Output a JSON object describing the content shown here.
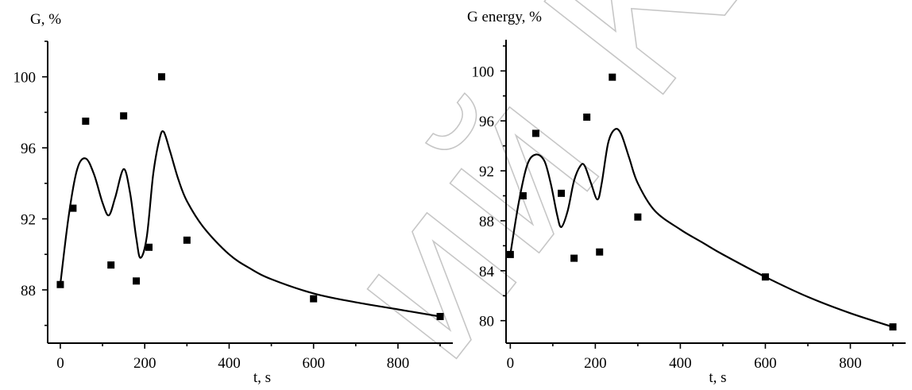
{
  "watermark": {
    "text": "ий КарГ"
  },
  "chart_data": [
    {
      "type": "scatter",
      "ylabel": "G, %",
      "xlabel": "t, s",
      "xlim": [
        -30,
        930
      ],
      "ylim": [
        85,
        102
      ],
      "xticks": [
        0,
        200,
        400,
        600,
        800
      ],
      "yticks": [
        88,
        92,
        96,
        100
      ],
      "series": [
        {
          "points": [
            [
              0,
              88.3
            ],
            [
              30,
              92.6
            ],
            [
              60,
              97.5
            ],
            [
              120,
              89.4
            ],
            [
              150,
              97.8
            ],
            [
              180,
              88.5
            ],
            [
              210,
              90.4
            ],
            [
              240,
              100.0
            ],
            [
              300,
              90.8
            ],
            [
              600,
              87.5
            ],
            [
              900,
              86.5
            ]
          ]
        }
      ],
      "curve": [
        [
          0,
          88.3
        ],
        [
          20,
          92.2
        ],
        [
          40,
          94.8
        ],
        [
          60,
          95.4
        ],
        [
          80,
          94.5
        ],
        [
          100,
          92.9
        ],
        [
          115,
          92.2
        ],
        [
          130,
          93.2
        ],
        [
          150,
          94.8
        ],
        [
          165,
          93.5
        ],
        [
          180,
          90.9
        ],
        [
          190,
          89.8
        ],
        [
          205,
          91.0
        ],
        [
          220,
          94.5
        ],
        [
          235,
          96.5
        ],
        [
          245,
          96.9
        ],
        [
          260,
          95.8
        ],
        [
          280,
          94.2
        ],
        [
          300,
          93.0
        ],
        [
          340,
          91.5
        ],
        [
          400,
          90.0
        ],
        [
          450,
          89.2
        ],
        [
          500,
          88.6
        ],
        [
          600,
          87.8
        ],
        [
          700,
          87.3
        ],
        [
          800,
          86.9
        ],
        [
          900,
          86.5
        ]
      ]
    },
    {
      "type": "scatter",
      "ylabel": "G energy, %",
      "xlabel": "t, s",
      "xlim": [
        -10,
        930
      ],
      "ylim": [
        78.2,
        102.5
      ],
      "xticks": [
        0,
        200,
        400,
        600,
        800
      ],
      "yticks": [
        80,
        84,
        88,
        92,
        96,
        100
      ],
      "series": [
        {
          "points": [
            [
              0,
              85.3
            ],
            [
              30,
              90.0
            ],
            [
              60,
              95.0
            ],
            [
              120,
              90.2
            ],
            [
              150,
              85.0
            ],
            [
              180,
              96.3
            ],
            [
              210,
              85.5
            ],
            [
              240,
              99.5
            ],
            [
              300,
              88.3
            ],
            [
              600,
              83.5
            ],
            [
              900,
              79.5
            ]
          ]
        }
      ],
      "curve": [
        [
          0,
          85.3
        ],
        [
          20,
          89.5
        ],
        [
          40,
          92.5
        ],
        [
          60,
          93.3
        ],
        [
          80,
          92.8
        ],
        [
          95,
          91.0
        ],
        [
          110,
          88.5
        ],
        [
          120,
          87.5
        ],
        [
          135,
          88.8
        ],
        [
          150,
          91.2
        ],
        [
          165,
          92.4
        ],
        [
          175,
          92.4
        ],
        [
          190,
          91.0
        ],
        [
          205,
          89.7
        ],
        [
          215,
          91.0
        ],
        [
          230,
          94.2
        ],
        [
          245,
          95.3
        ],
        [
          260,
          95.0
        ],
        [
          280,
          93.0
        ],
        [
          300,
          91.0
        ],
        [
          340,
          88.8
        ],
        [
          400,
          87.3
        ],
        [
          450,
          86.3
        ],
        [
          500,
          85.3
        ],
        [
          600,
          83.5
        ],
        [
          700,
          81.9
        ],
        [
          800,
          80.6
        ],
        [
          900,
          79.5
        ]
      ]
    }
  ]
}
